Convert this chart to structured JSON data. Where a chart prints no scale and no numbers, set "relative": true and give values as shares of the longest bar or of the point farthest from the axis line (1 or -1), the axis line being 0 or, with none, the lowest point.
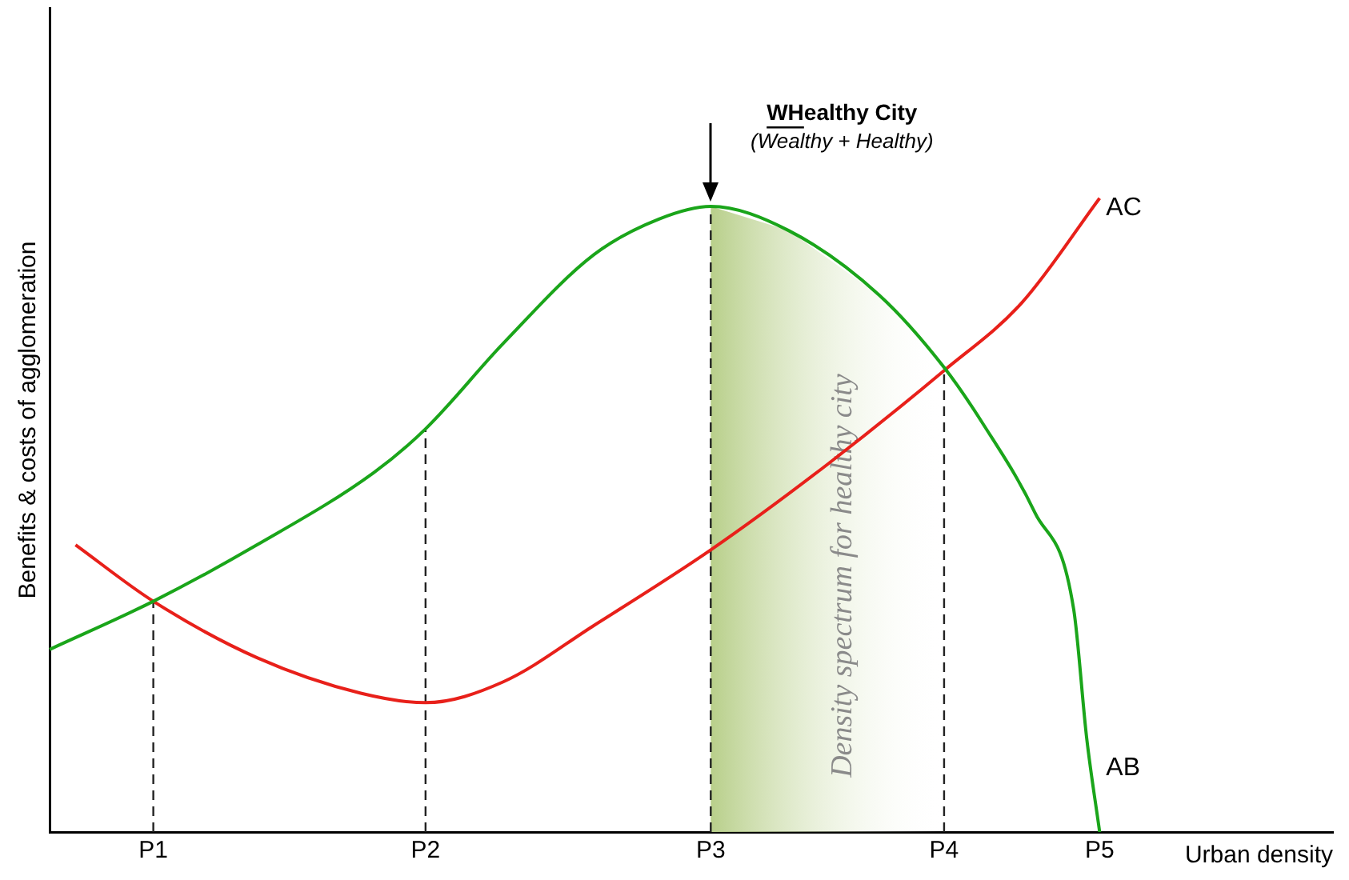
{
  "chart_data": {
    "type": "line",
    "relative": true,
    "xlabel": "Urban density",
    "ylabel": "Benefits & costs of agglomeration",
    "categories": [
      null,
      null,
      null,
      null,
      null,
      null,
      null,
      null,
      "P1",
      null,
      null,
      null,
      null,
      null,
      null,
      null,
      null,
      null,
      null,
      null,
      null,
      null,
      null,
      null,
      null,
      null,
      null,
      null,
      null,
      "P2",
      null,
      null,
      null,
      null,
      null,
      null,
      null,
      null,
      null,
      null,
      null,
      null,
      null,
      null,
      null,
      null,
      null,
      null,
      null,
      null,
      null,
      "P3",
      null,
      null,
      null,
      null,
      null,
      null,
      null,
      null,
      null,
      null,
      null,
      null,
      null,
      null,
      null,
      null,
      null,
      "P4",
      null,
      null,
      null,
      null,
      null,
      null,
      null,
      null,
      null,
      null,
      null,
      "P5",
      null,
      null,
      null,
      null,
      null,
      null,
      null,
      null,
      null,
      null,
      null,
      null,
      null,
      null,
      null,
      null,
      null,
      null
    ],
    "series": [
      {
        "name": "AB",
        "color": "#1aa51a",
        "values": [
          0.288,
          null,
          null,
          null,
          null,
          null,
          null,
          null,
          0.364,
          null,
          null,
          null,
          null,
          null,
          null,
          null,
          0.453,
          null,
          null,
          null,
          null,
          null,
          null,
          null,
          null,
          0.567,
          null,
          null,
          null,
          0.636,
          null,
          null,
          null,
          null,
          null,
          0.771,
          null,
          null,
          null,
          null,
          null,
          null,
          0.911,
          null,
          null,
          null,
          null,
          0.967,
          null,
          null,
          null,
          0.987,
          null,
          null,
          null,
          null,
          null,
          0.949,
          null,
          null,
          null,
          null,
          null,
          null,
          0.847,
          null,
          null,
          null,
          null,
          0.733,
          null,
          null,
          0.644,
          null,
          null,
          null,
          0.504,
          null,
          null,
          0.351,
          0.148,
          0,
          null,
          null,
          null,
          null,
          null,
          null,
          null,
          null,
          null,
          null,
          null,
          null,
          null,
          null,
          null,
          null,
          null,
          null
        ]
      },
      {
        "name": "AC",
        "color": "#e8201a",
        "values": [
          null,
          null,
          0.453,
          null,
          null,
          null,
          null,
          null,
          0.364,
          null,
          null,
          null,
          null,
          null,
          null,
          null,
          0.275,
          null,
          null,
          null,
          null,
          null,
          null,
          null,
          0.219,
          null,
          null,
          null,
          null,
          0.204,
          null,
          null,
          null,
          null,
          null,
          0.237,
          null,
          null,
          null,
          null,
          null,
          null,
          0.326,
          null,
          null,
          null,
          null,
          null,
          null,
          null,
          null,
          0.445,
          null,
          null,
          null,
          null,
          null,
          null,
          null,
          null,
          0.58,
          null,
          null,
          null,
          null,
          null,
          null,
          null,
          null,
          0.728,
          null,
          null,
          null,
          null,
          null,
          0.835,
          null,
          null,
          null,
          null,
          null,
          1,
          null,
          null,
          null,
          null,
          null,
          null,
          null,
          null,
          null,
          null,
          null,
          null,
          null,
          null,
          null,
          null,
          null,
          null
        ]
      }
    ],
    "ref_lines": [
      {
        "axis": "x",
        "value": "P1",
        "line_style": "dashed",
        "color": "#222222"
      },
      {
        "axis": "x",
        "value": "P2",
        "line_style": "dashed",
        "color": "#222222"
      },
      {
        "axis": "x",
        "value": "P3",
        "line_style": "dashed",
        "color": "#222222"
      },
      {
        "axis": "x",
        "value": "P4",
        "line_style": "dashed",
        "color": "#222222"
      }
    ],
    "bands": [
      {
        "axis": "x",
        "from": "P3",
        "to": "P4",
        "label": "Density spectrum for healthy city",
        "color": "#b8cf8a"
      }
    ],
    "annotations": [
      "WHealthy City",
      "(Wealthy + Healthy)"
    ],
    "grid": false,
    "legend": false,
    "marker": "none",
    "line_style": "solid"
  }
}
